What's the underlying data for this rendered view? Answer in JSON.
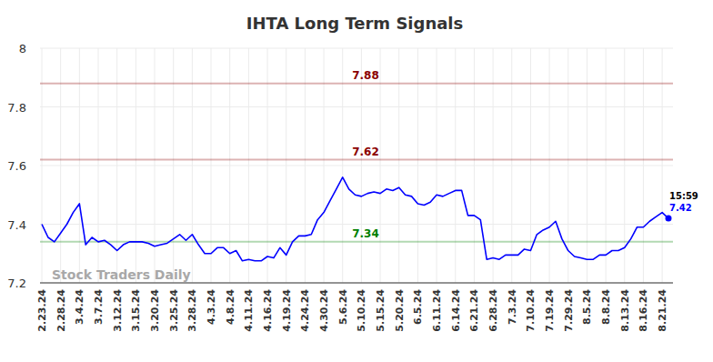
{
  "chart_data": {
    "type": "line",
    "title": "IHTA Long Term Signals",
    "watermark": "Stock Traders Daily",
    "categories": [
      "2.23.24",
      null,
      null,
      "2.28.24",
      null,
      null,
      "3.4.24",
      null,
      null,
      "3.7.24",
      null,
      null,
      "3.12.24",
      null,
      null,
      "3.15.24",
      null,
      null,
      "3.20.24",
      null,
      null,
      "3.25.24",
      null,
      null,
      "3.28.24",
      null,
      null,
      "4.3.24",
      null,
      null,
      "4.8.24",
      null,
      null,
      "4.11.24",
      null,
      null,
      "4.16.24",
      null,
      null,
      "4.19.24",
      null,
      null,
      "4.24.24",
      null,
      null,
      "4.30.24",
      null,
      null,
      "5.6.24",
      null,
      null,
      "5.10.24",
      null,
      null,
      "5.15.24",
      null,
      null,
      "5.20.24",
      null,
      null,
      "6.5.24",
      null,
      null,
      "6.11.24",
      null,
      null,
      "6.14.24",
      null,
      null,
      "6.21.24",
      null,
      null,
      "6.28.24",
      null,
      null,
      "7.3.24",
      null,
      null,
      "7.10.24",
      null,
      null,
      "7.19.24",
      null,
      null,
      "7.29.24",
      null,
      null,
      "8.5.24",
      null,
      null,
      "8.8.24",
      null,
      null,
      "8.13.24",
      null,
      null,
      "8.16.24",
      null,
      null,
      "8.21.24",
      null
    ],
    "values": [
      7.4,
      7.355,
      7.34,
      7.37,
      7.4,
      7.44,
      7.47,
      7.33,
      7.355,
      7.34,
      7.345,
      7.33,
      7.31,
      7.33,
      7.34,
      7.34,
      7.34,
      7.335,
      7.325,
      7.33,
      7.335,
      7.35,
      7.365,
      7.345,
      7.365,
      7.33,
      7.3,
      7.3,
      7.32,
      7.32,
      7.3,
      7.31,
      7.275,
      7.28,
      7.275,
      7.275,
      7.29,
      7.285,
      7.32,
      7.295,
      7.34,
      7.36,
      7.36,
      7.365,
      7.415,
      7.44,
      7.48,
      7.52,
      7.56,
      7.52,
      7.5,
      7.495,
      7.505,
      7.51,
      7.505,
      7.52,
      7.515,
      7.525,
      7.5,
      7.495,
      7.47,
      7.465,
      7.475,
      7.5,
      7.495,
      7.505,
      7.515,
      7.515,
      7.43,
      7.43,
      7.415,
      7.28,
      7.285,
      7.28,
      7.295,
      7.295,
      7.295,
      7.315,
      7.31,
      7.365,
      7.38,
      7.39,
      7.41,
      7.35,
      7.31,
      7.29,
      7.285,
      7.28,
      7.28,
      7.295,
      7.295,
      7.31,
      7.31,
      7.32,
      7.35,
      7.39,
      7.39,
      7.41,
      7.425,
      7.44,
      7.42
    ],
    "color": "#0000ff",
    "ylim": [
      7.2,
      8
    ],
    "yticks": [
      7.2,
      7.4,
      7.6,
      7.8,
      8
    ],
    "grid": true,
    "reference_lines": [
      {
        "value": 7.88,
        "color": "#8b0000"
      },
      {
        "value": 7.62,
        "color": "#8b0000"
      },
      {
        "value": 7.34,
        "color": "#008000"
      }
    ],
    "annotations": [
      {
        "text": "15:59"
      }
    ]
  }
}
